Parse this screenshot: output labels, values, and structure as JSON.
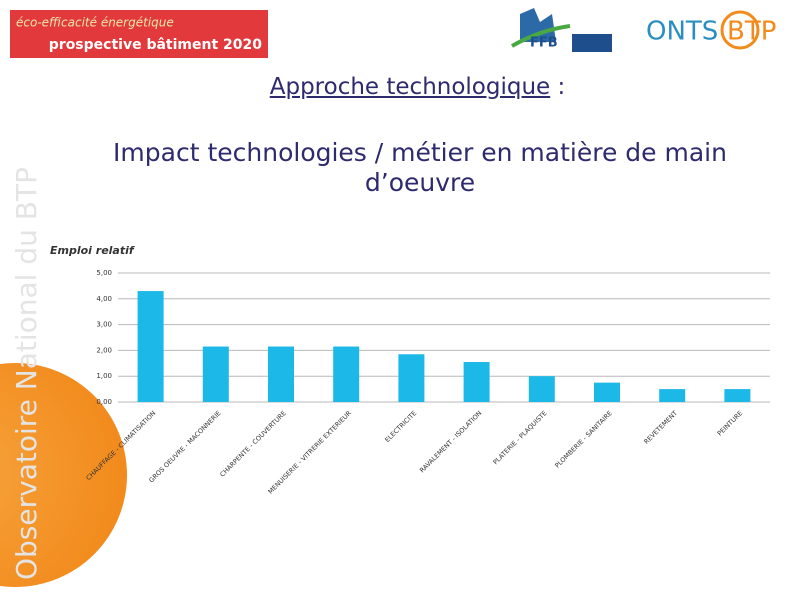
{
  "header": {
    "badge_line1": "éco-efficacité énergétique",
    "badge_line2": "prospective bâtiment 2020",
    "ffb_logo": "FFB",
    "logo_onts": "ONTS",
    "logo_btp": "BTP"
  },
  "sidebar_text": "Observatoire National du BTP",
  "chart_data": {
    "type": "bar",
    "title": "Approche technologique",
    "title_suffix": ":",
    "subtitle": "Impact technologies / métier en matière de main d’oeuvre",
    "y_label": "Emploi relatif",
    "categories": [
      "CHAUFFAGE - CLIMATISATION",
      "GROS OEUVRE - MACONNERIE",
      "CHARPENTE - COUVERTURE",
      "MENUISERIE - VITRERIE EXTERIEUR",
      "ELECTRICITE",
      "RAVALEMENT - ISOLATION",
      "PLATERIE - PLAQUISTE",
      "PLOMBERIE - SANITAIRE",
      "REVETEMENT",
      "PEINTURE"
    ],
    "values": [
      4.3,
      2.15,
      2.15,
      2.15,
      1.85,
      1.55,
      1.0,
      0.75,
      0.5,
      0.5
    ],
    "color": "#1cb9e8",
    "ylim": [
      0,
      5
    ],
    "yticks": [
      {
        "value": 0,
        "label": "0,00"
      },
      {
        "value": 1,
        "label": "1,00"
      },
      {
        "value": 2,
        "label": "2,00"
      },
      {
        "value": 3,
        "label": "3,00"
      },
      {
        "value": 4,
        "label": "4,00"
      },
      {
        "value": 5,
        "label": "5,00"
      }
    ],
    "grid": true
  }
}
